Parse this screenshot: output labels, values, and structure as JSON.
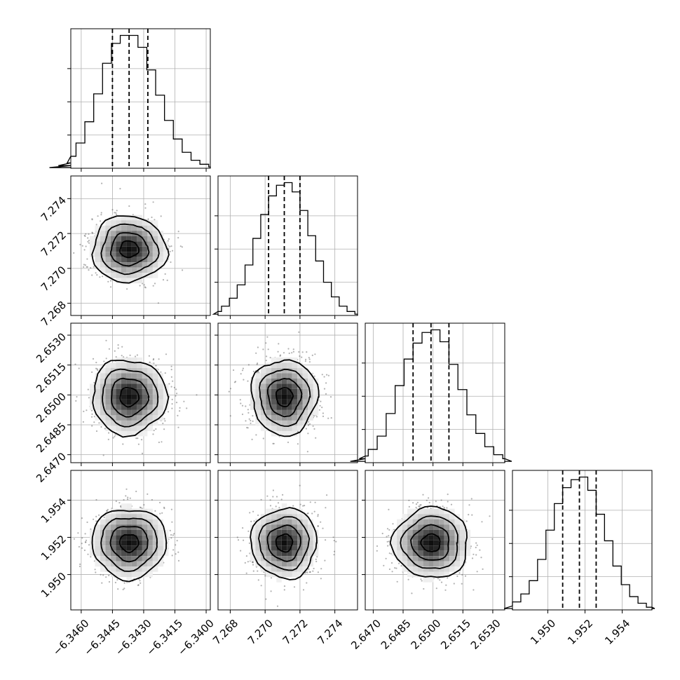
{
  "chart_data": {
    "type": "corner",
    "grid": true,
    "parameters": [
      {
        "median": -6.3437,
        "q16": -6.3445,
        "q84": -6.3428,
        "sigma": 0.00085,
        "xlim": [
          -6.3465,
          -6.3398
        ],
        "ticks": [
          -6.346,
          -6.3445,
          -6.343,
          -6.3415,
          -6.34
        ],
        "tick_labels": [
          "−6.3460",
          "−6.3445",
          "−6.3430",
          "−6.3415",
          "−6.3400"
        ],
        "hist": [
          0.5,
          2,
          4,
          9,
          19,
          35,
          56,
          79,
          94,
          100,
          100,
          91,
          74,
          55,
          36,
          22,
          12,
          6,
          3,
          1
        ]
      },
      {
        "median": 7.2711,
        "q16": 7.2702,
        "q84": 7.272,
        "sigma": 0.0009,
        "xlim": [
          7.2673,
          7.2753
        ],
        "ticks": [
          7.268,
          7.27,
          7.272,
          7.274
        ],
        "tick_labels": [
          "7.268",
          "7.270",
          "7.272",
          "7.274"
        ],
        "hist": [
          1,
          3,
          7,
          13,
          23,
          38,
          58,
          76,
          90,
          98,
          100,
          93,
          79,
          60,
          41,
          25,
          14,
          7,
          3,
          1
        ]
      },
      {
        "median": 2.6499,
        "q16": 2.649,
        "q84": 2.6508,
        "sigma": 0.0009,
        "xlim": [
          2.6466,
          2.6536
        ],
        "ticks": [
          2.647,
          2.6485,
          2.65,
          2.6515,
          2.653
        ],
        "tick_labels": [
          "2.6470",
          "2.6485",
          "2.6500",
          "2.6515",
          "2.6530"
        ],
        "hist": [
          1,
          3,
          5,
          10,
          20,
          37,
          58,
          78,
          90,
          98,
          100,
          91,
          74,
          55,
          36,
          22,
          12,
          6,
          3,
          1
        ]
      },
      {
        "median": 1.9517,
        "q16": 1.9508,
        "q84": 1.9526,
        "sigma": 0.0009,
        "xlim": [
          1.9481,
          1.9556
        ],
        "ticks": [
          1.95,
          1.952,
          1.954
        ],
        "tick_labels": [
          "1.950",
          "1.952",
          "1.954"
        ],
        "hist": [
          1,
          3,
          6,
          12,
          22,
          38,
          60,
          80,
          92,
          98,
          100,
          90,
          72,
          52,
          33,
          19,
          10,
          5,
          2,
          1
        ]
      }
    ],
    "contour_levels_sigma": [
      0.5,
      1.0,
      1.5,
      2.0
    ],
    "colors": {
      "line": "#000000",
      "grid": "#b0b0b0",
      "points": "#555555",
      "density": "#000000"
    }
  }
}
